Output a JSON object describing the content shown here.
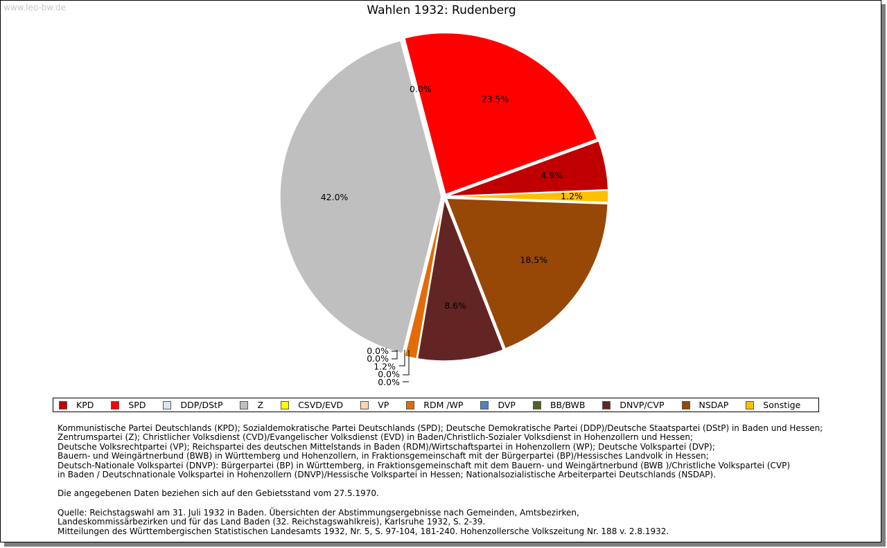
{
  "watermark": "www.leo-bw.de",
  "chart_data": {
    "type": "pie",
    "title": "Wahlen 1932: Rudenberg",
    "slices": [
      {
        "label": "KPD",
        "value": 4.9,
        "display": "4.9%",
        "color": "#c00000"
      },
      {
        "label": "Sonstige",
        "value": 1.2,
        "display": "1.2%",
        "color": "#ffc000"
      },
      {
        "label": "NSDAP",
        "value": 18.5,
        "display": "18.5%",
        "color": "#974706"
      },
      {
        "label": "DNVP/CVP",
        "value": 8.6,
        "display": "8.6%",
        "color": "#632523"
      },
      {
        "label": "BB/BWB",
        "value": 0.0,
        "display": "0.0%",
        "color": "#4f6228"
      },
      {
        "label": "DVP",
        "value": 0.0,
        "display": "0.0%",
        "color": "#4f81bd"
      },
      {
        "label": "RDM /WP",
        "value": 1.2,
        "display": "1.2%",
        "color": "#e36c09"
      },
      {
        "label": "VP",
        "value": 0.0,
        "display": "0.0%",
        "color": "#fbd5b5"
      },
      {
        "label": "CSVD/EVD",
        "value": 0.0,
        "display": "0.0%",
        "color": "#ffff00"
      },
      {
        "label": "Z",
        "value": 42.0,
        "display": "42.0%",
        "color": "#bfbfbf"
      },
      {
        "label": "DDP/DStP",
        "value": 0.0,
        "display": "0.0%",
        "color": "#dbe5f1"
      },
      {
        "label": "SPD",
        "value": 23.5,
        "display": "23.5%",
        "color": "#ff0000"
      }
    ],
    "legend": [
      {
        "label": "KPD",
        "color": "#c00000"
      },
      {
        "label": "SPD",
        "color": "#ff0000"
      },
      {
        "label": "DDP/DStP",
        "color": "#dbe5f1"
      },
      {
        "label": "Z",
        "color": "#bfbfbf"
      },
      {
        "label": "CSVD/EVD",
        "color": "#ffff00"
      },
      {
        "label": "VP",
        "color": "#fbd5b5"
      },
      {
        "label": "RDM /WP",
        "color": "#e36c09"
      },
      {
        "label": "DVP",
        "color": "#4f81bd"
      },
      {
        "label": "BB/BWB",
        "color": "#4f6228"
      },
      {
        "label": "DNVP/CVP",
        "color": "#632523"
      },
      {
        "label": "NSDAP",
        "color": "#974706"
      },
      {
        "label": "Sonstige",
        "color": "#ffc000"
      }
    ],
    "legend_position": "bottom"
  },
  "notes": {
    "parties": [
      "Kommunistische Partei Deutschlands (KPD); Sozialdemokratische Partei Deutschlands (SPD); Deutsche Demokratische Partei (DDP)/Deutsche Staatspartei (DStP) in Baden und Hessen;",
      "Zentrumspartei (Z); Christlicher Volksdienst (CVD)/Evangelischer Volksdienst (EVD) in Baden/Christlich-Sozialer Volksdienst in Hohenzollern und Hessen;",
      "Deutsche Volksrechtpartei (VP); Reichspartei des deutschen Mittelstands in Baden (RDM)/Wirtschaftspartei in Hohenzollern (WP); Deutsche Volkspartei (DVP);",
      "Bauern- und Weingärtnerbund (BWB) in Württemberg und Hohenzollern, in Fraktionsgemeinschaft mit der Bürgerpartei (BP)/Hessisches Landvolk in Hessen;",
      "Deutsch-Nationale Volkspartei (DNVP): Bürgerpartei (BP) in Württemberg, in Fraktionsgemeinschaft mit dem Bauern- und Weingärtnerbund (BWB )/Christliche Volkspartei (CVP)",
      "in Baden / Deutschnationale Volkspartei in Hohenzollern (DNVP)/Hessische Volkspartei in Hessen; Nationalsozialistische Arbeiterpartei Deutschlands (NSDAP)."
    ],
    "territory": "Die angegebenen Daten beziehen sich auf den Gebietsstand vom 27.5.1970.",
    "source": [
      "Quelle: Reichstagswahl am 31. Juli 1932 in Baden. Übersichten der Abstimmungsergebnisse nach Gemeinden, Amtsbezirken,",
      "Landeskommissärbezirken und für das Land Baden (32. Reichstagswahlkreis), Karlsruhe 1932, S. 2-39.",
      "Mitteilungen des Württembergischen Statistischen Landesamts 1932, Nr. 5, S. 97-104, 181-240. Hohenzollersche Volkszeitung Nr. 188 v. 2.8.1932."
    ]
  }
}
